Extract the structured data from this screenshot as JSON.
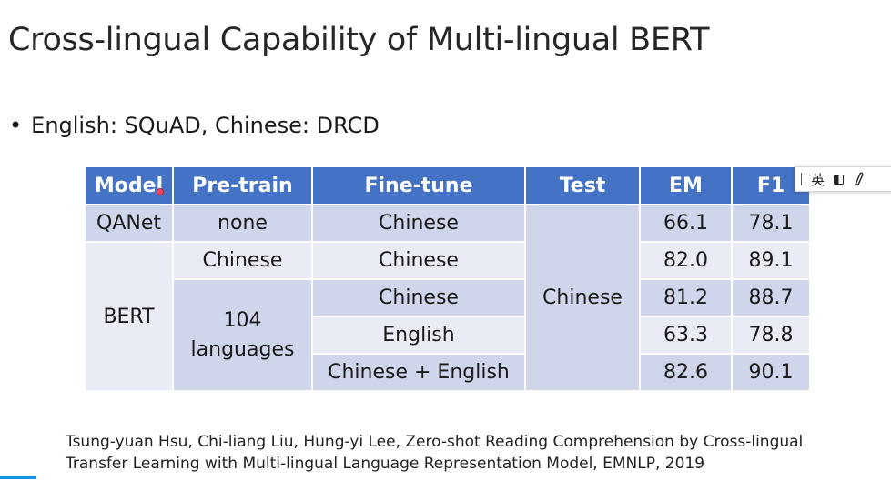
{
  "slide": {
    "title": "Cross-lingual Capability of Multi-lingual BERT",
    "bullet": "English: SQuAD, Chinese: DRCD",
    "table": {
      "headers": [
        "Model",
        "Pre-train",
        "Fine-tune",
        "Test",
        "EM",
        "F1"
      ],
      "model_qanet": "QANet",
      "model_bert": "BERT",
      "pretrain_none": "none",
      "pretrain_chinese": "Chinese",
      "pretrain_104": "104 languages",
      "test_chinese": "Chinese",
      "rows": [
        {
          "finetune": "Chinese",
          "em": "66.1",
          "f1": "78.1"
        },
        {
          "finetune": "Chinese",
          "em": "82.0",
          "f1": "89.1"
        },
        {
          "finetune": "Chinese",
          "em": "81.2",
          "f1": "88.7"
        },
        {
          "finetune": "English",
          "em": "63.3",
          "f1": "78.8"
        },
        {
          "finetune": "Chinese + English",
          "em": "82.6",
          "f1": "90.1"
        }
      ]
    },
    "citation_line1": "Tsung-yuan Hsu, Chi-liang Liu, Hung-yi Lee, Zero-shot Reading Comprehension by Cross-lingual",
    "citation_line2": "Transfer Learning with Multi-lingual Language Representation Model, EMNLP, 2019"
  },
  "ime_toolbar": {
    "language_label": "英",
    "icons": [
      "half-width-icon",
      "pinyin-icon"
    ]
  },
  "colors": {
    "header_bg": "#4472c4",
    "row_shade": "#cfd5ea",
    "row_light": "#e9ebf5"
  }
}
